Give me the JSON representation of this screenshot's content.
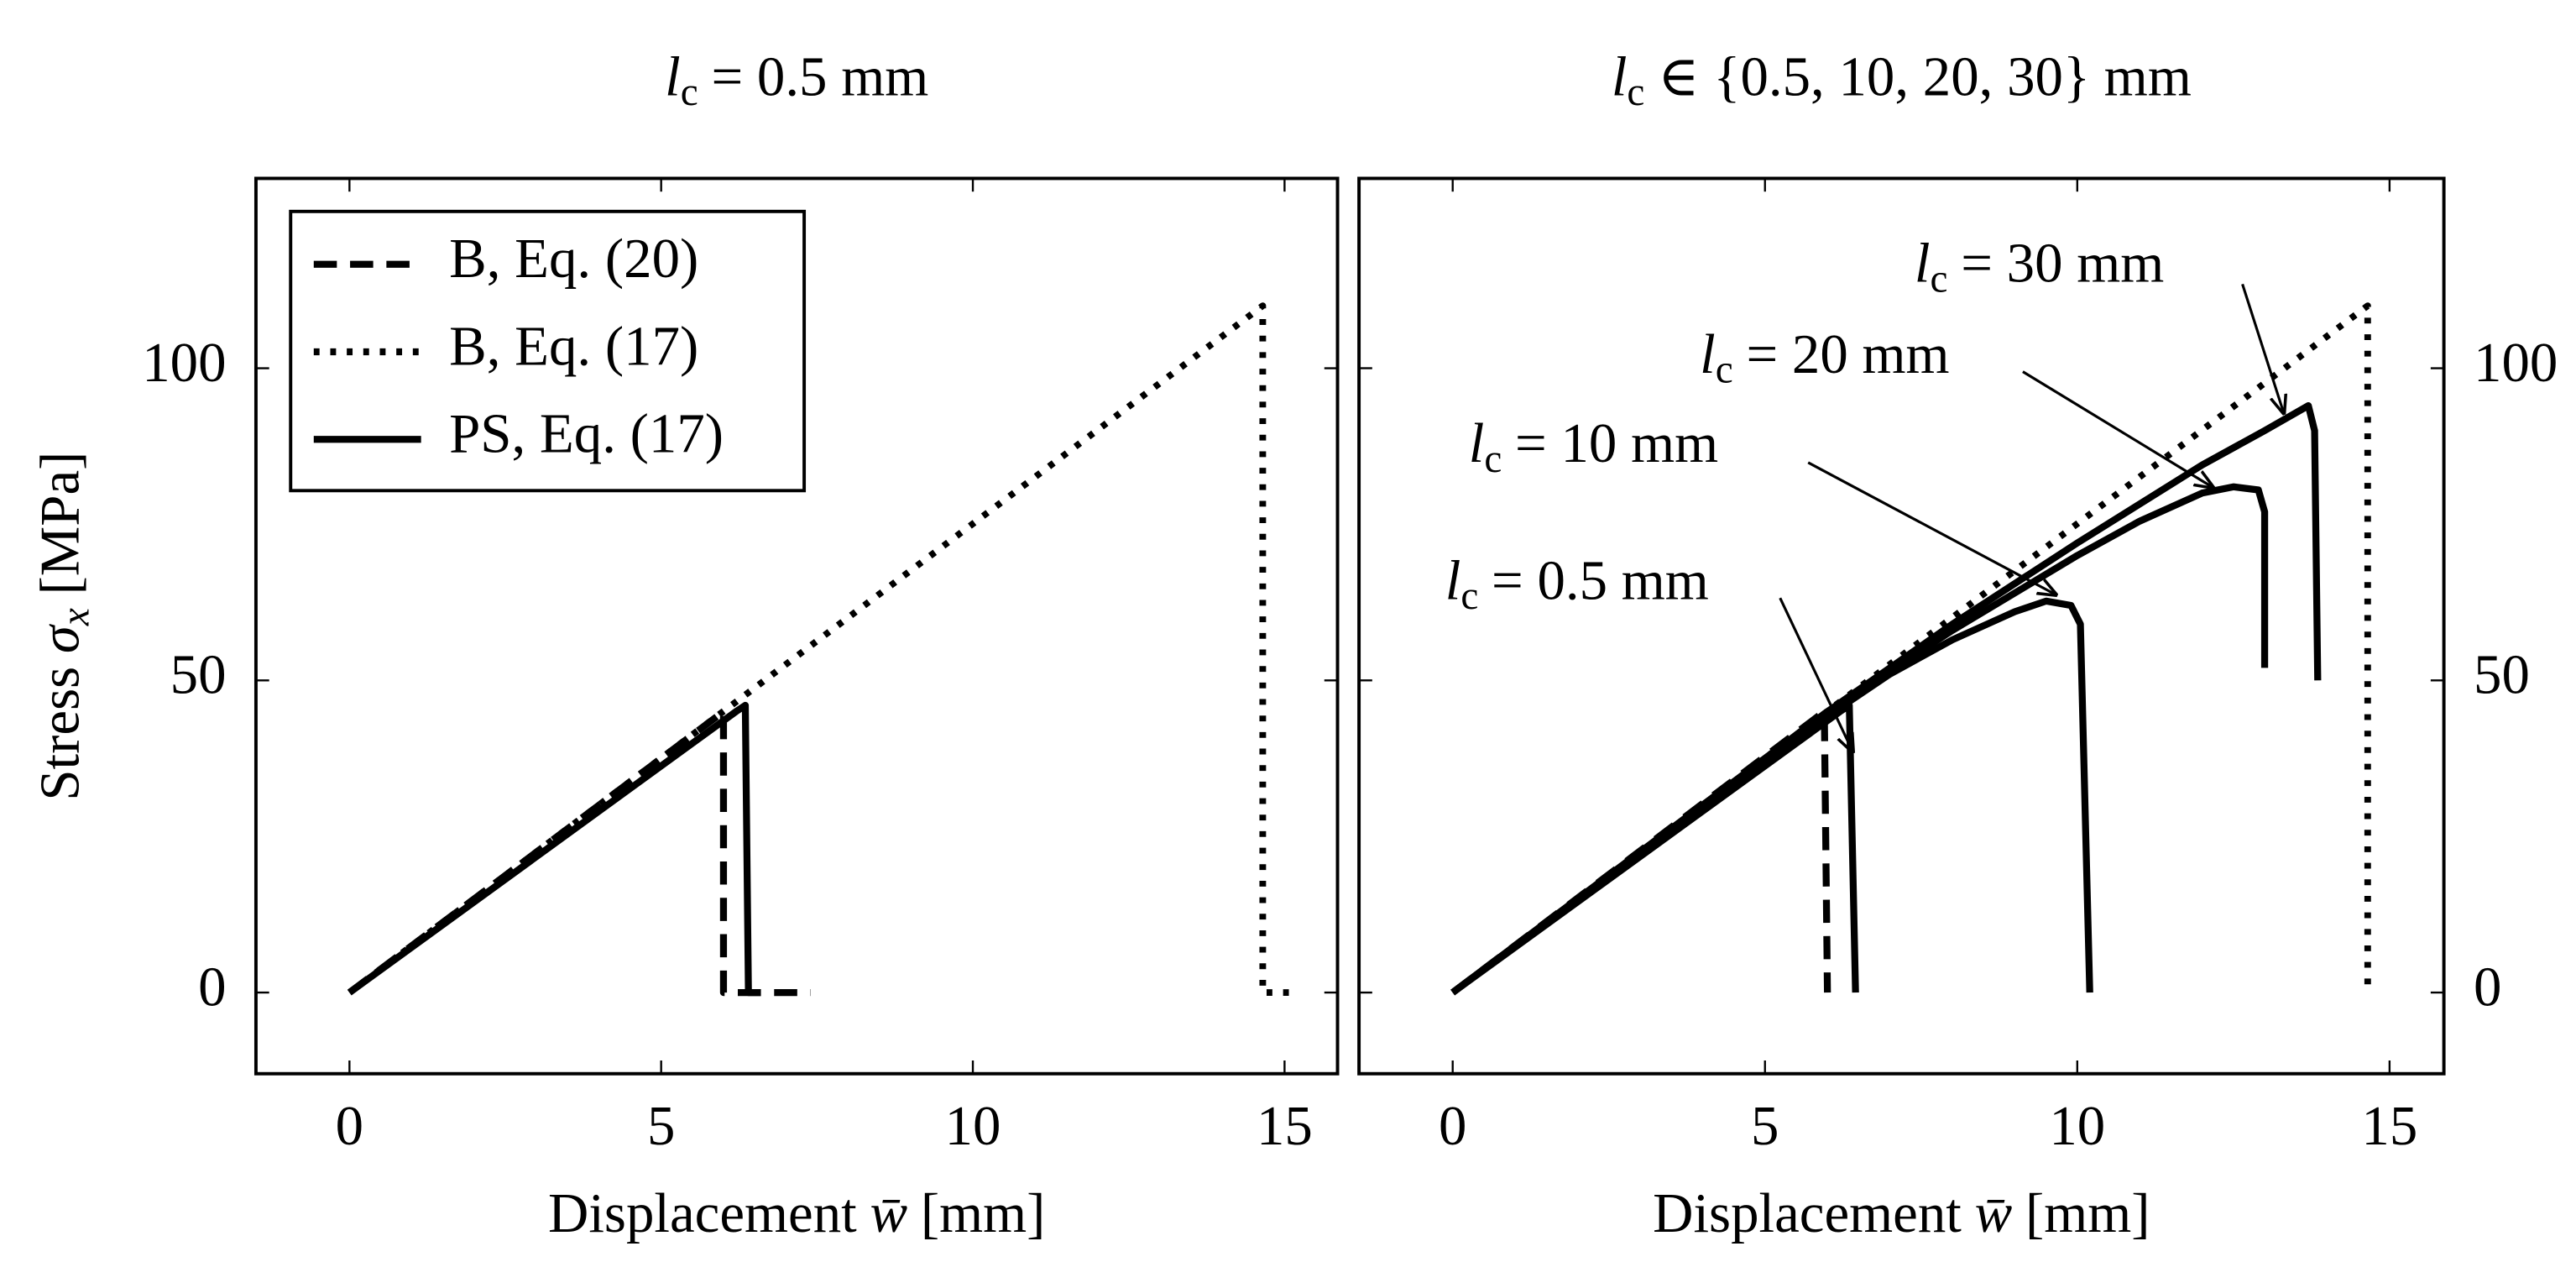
{
  "chart_data": [
    {
      "type": "line",
      "title": {
        "symbol": "l",
        "subscript": "c",
        "text": "= 0.5 mm"
      },
      "xlabel": {
        "text": "Displacement",
        "symbol": "w̄",
        "unit": "[mm]"
      },
      "ylabel": {
        "text": "Stress",
        "symbol": "σ",
        "subscript": "x",
        "unit": "[MPa]"
      },
      "xlim": [
        -1.5,
        15.85
      ],
      "ylim": [
        -13,
        130.4
      ],
      "xticks": [
        0,
        5,
        10,
        15
      ],
      "yticks": [
        0,
        50,
        100
      ],
      "yaxis_side": "left",
      "legend": "upper left",
      "series": [
        {
          "name": "B, Eq. (20)",
          "color": "#000000",
          "style": "dashed",
          "x": [
            0,
            6.0,
            6.0,
            7.4
          ],
          "values": [
            0,
            45,
            0,
            0
          ]
        },
        {
          "name": "B, Eq. (17)",
          "color": "#000000",
          "style": "dotted",
          "x": [
            0,
            14.65,
            14.65,
            15.1
          ],
          "values": [
            0,
            110,
            0,
            0
          ]
        },
        {
          "name": "PS, Eq. (17)",
          "color": "#000000",
          "style": "solid",
          "x": [
            0,
            6.2,
            6.35,
            6.4,
            6.6
          ],
          "values": [
            0,
            45,
            46,
            0,
            0
          ]
        }
      ]
    },
    {
      "type": "line",
      "title": {
        "symbol": "l",
        "subscript": "c",
        "text": "∈ {0.5, 10, 20, 30} mm"
      },
      "xlabel": {
        "text": "Displacement",
        "symbol": "w̄",
        "unit": "[mm]"
      },
      "xlim": [
        -1.5,
        15.87
      ],
      "ylim": [
        -13,
        130.4
      ],
      "xticks": [
        0,
        5,
        10,
        15
      ],
      "yticks": [
        0,
        50,
        100
      ],
      "yaxis_side": "right",
      "series": [
        {
          "color": "#000000",
          "style": "dashed",
          "x": [
            0,
            5.95,
            6.0
          ],
          "values": [
            0,
            45,
            0
          ]
        },
        {
          "color": "#000000",
          "style": "dotted",
          "x": [
            0,
            14.65,
            14.65
          ],
          "values": [
            0,
            110,
            0
          ]
        },
        {
          "color": "#000000",
          "style": "solid",
          "x": [
            0,
            6.2,
            6.35,
            6.45
          ],
          "values": [
            0,
            45,
            46,
            0
          ]
        },
        {
          "color": "#000000",
          "style": "solid",
          "x": [
            0,
            5,
            7,
            8,
            9,
            9.5,
            9.9,
            10.05,
            10.2
          ],
          "values": [
            0,
            37.5,
            51,
            56.5,
            61,
            62.7,
            62,
            59,
            0
          ]
        },
        {
          "color": "#000000",
          "style": "solid",
          "x": [
            0,
            6,
            8,
            10,
            11,
            12,
            12.5,
            12.9,
            13.0,
            13.0
          ],
          "values": [
            0,
            45,
            58,
            70,
            75.5,
            80,
            81,
            80.5,
            77,
            52
          ]
        },
        {
          "color": "#000000",
          "style": "solid",
          "x": [
            0,
            6,
            8,
            10,
            12,
            13,
            13.7,
            13.8,
            13.85
          ],
          "values": [
            0,
            45,
            59,
            72,
            84.5,
            90,
            94,
            90,
            50
          ]
        }
      ],
      "annotations": [
        {
          "symbol": "l",
          "subscript": "c",
          "text": "= 30 mm"
        },
        {
          "symbol": "l",
          "subscript": "c",
          "text": "= 20 mm"
        },
        {
          "symbol": "l",
          "subscript": "c",
          "text": "= 10 mm"
        },
        {
          "symbol": "l",
          "subscript": "c",
          "text": "= 0.5 mm"
        }
      ]
    }
  ]
}
